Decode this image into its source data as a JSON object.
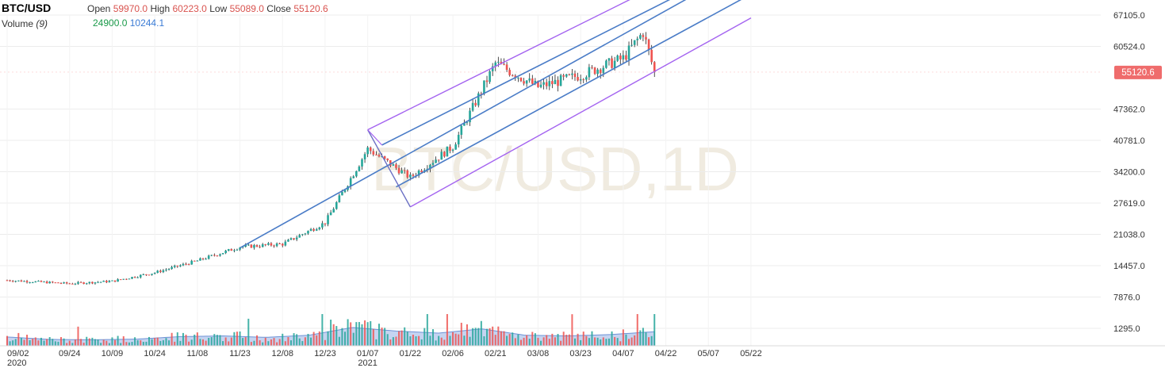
{
  "header": {
    "symbol": "BTC/USD",
    "open_label": "Open",
    "open_value": "59970.0",
    "high_label": "High",
    "high_value": "60223.0",
    "low_label": "Low",
    "low_value": "55089.0",
    "close_label": "Close",
    "close_value": "55120.6",
    "volume_label": "Volume",
    "volume_param": "(9)",
    "volume_value": "24900.0",
    "volume_ma_value": "10244.1"
  },
  "watermark": "BTC/USD,1D",
  "colors": {
    "up": "#26a69a",
    "down": "#ef5350",
    "channel_blue": "#4a7cc7",
    "channel_purple": "#a464f0",
    "volume_area": "#9fb8e8",
    "price_badge": "#ef6c6c"
  },
  "chart_data": {
    "type": "candlestick",
    "symbol": "BTC/USD",
    "interval": "1D",
    "y_axis": {
      "position": "right",
      "ticks": [
        1295.0,
        7876.0,
        14457.0,
        21038.0,
        27619.0,
        34200.0,
        40781.0,
        47362.0,
        60524.0,
        67105.0
      ],
      "tick_labels": [
        "1295.0",
        "7876.0",
        "14457.0",
        "21038.0",
        "27619.0",
        "34200.0",
        "40781.0",
        "47362.0",
        "60524.0",
        "67105.0"
      ],
      "range": [
        0,
        72000
      ]
    },
    "x_axis": {
      "tick_labels": [
        "09/02",
        "09/24",
        "10/09",
        "10/24",
        "11/08",
        "11/23",
        "12/08",
        "12/23",
        "01/07",
        "01/22",
        "02/06",
        "02/21",
        "03/08",
        "03/23",
        "04/07",
        "04/22",
        "05/07",
        "05/22"
      ],
      "year_labels": [
        {
          "at": "09/02",
          "text": "2020"
        },
        {
          "at": "01/07",
          "text": "2021"
        }
      ]
    },
    "last_price": 55120.6,
    "last_price_label": "55120.6",
    "price_path": [
      {
        "date": "09/02",
        "close": 11400
      },
      {
        "date": "09/24",
        "close": 10700
      },
      {
        "date": "10/09",
        "close": 11200
      },
      {
        "date": "10/24",
        "close": 13000
      },
      {
        "date": "11/08",
        "close": 15500
      },
      {
        "date": "11/23",
        "close": 18400
      },
      {
        "date": "12/08",
        "close": 19000
      },
      {
        "date": "12/23",
        "close": 23500
      },
      {
        "date": "01/07",
        "close": 39000
      },
      {
        "date": "01/22",
        "close": 33000
      },
      {
        "date": "02/06",
        "close": 39500
      },
      {
        "date": "02/21",
        "close": 57000
      },
      {
        "date": "03/08",
        "close": 52000
      },
      {
        "date": "03/23",
        "close": 54500
      },
      {
        "date": "04/07",
        "close": 58000
      },
      {
        "date": "04/14",
        "close": 63500
      },
      {
        "date": "04/18",
        "close": 55120
      }
    ],
    "volume_path": [
      2500,
      1800,
      1700,
      1900,
      2600,
      2800,
      2400,
      3000,
      5200,
      4200,
      3600,
      4800,
      3000,
      2800,
      3200,
      4000
    ],
    "channels": [
      {
        "color": "blue",
        "from": {
          "date": "11/23",
          "price": 18200
        },
        "to": {
          "date": "05/22",
          "price": 78000
        }
      },
      {
        "color": "purple",
        "from": {
          "date": "01/07",
          "price": 43000
        },
        "to": {
          "date": "05/22",
          "price": 83000
        }
      },
      {
        "color": "purple",
        "from": {
          "date": "01/22",
          "price": 26800
        },
        "to": {
          "date": "05/22",
          "price": 66500
        }
      }
    ]
  }
}
